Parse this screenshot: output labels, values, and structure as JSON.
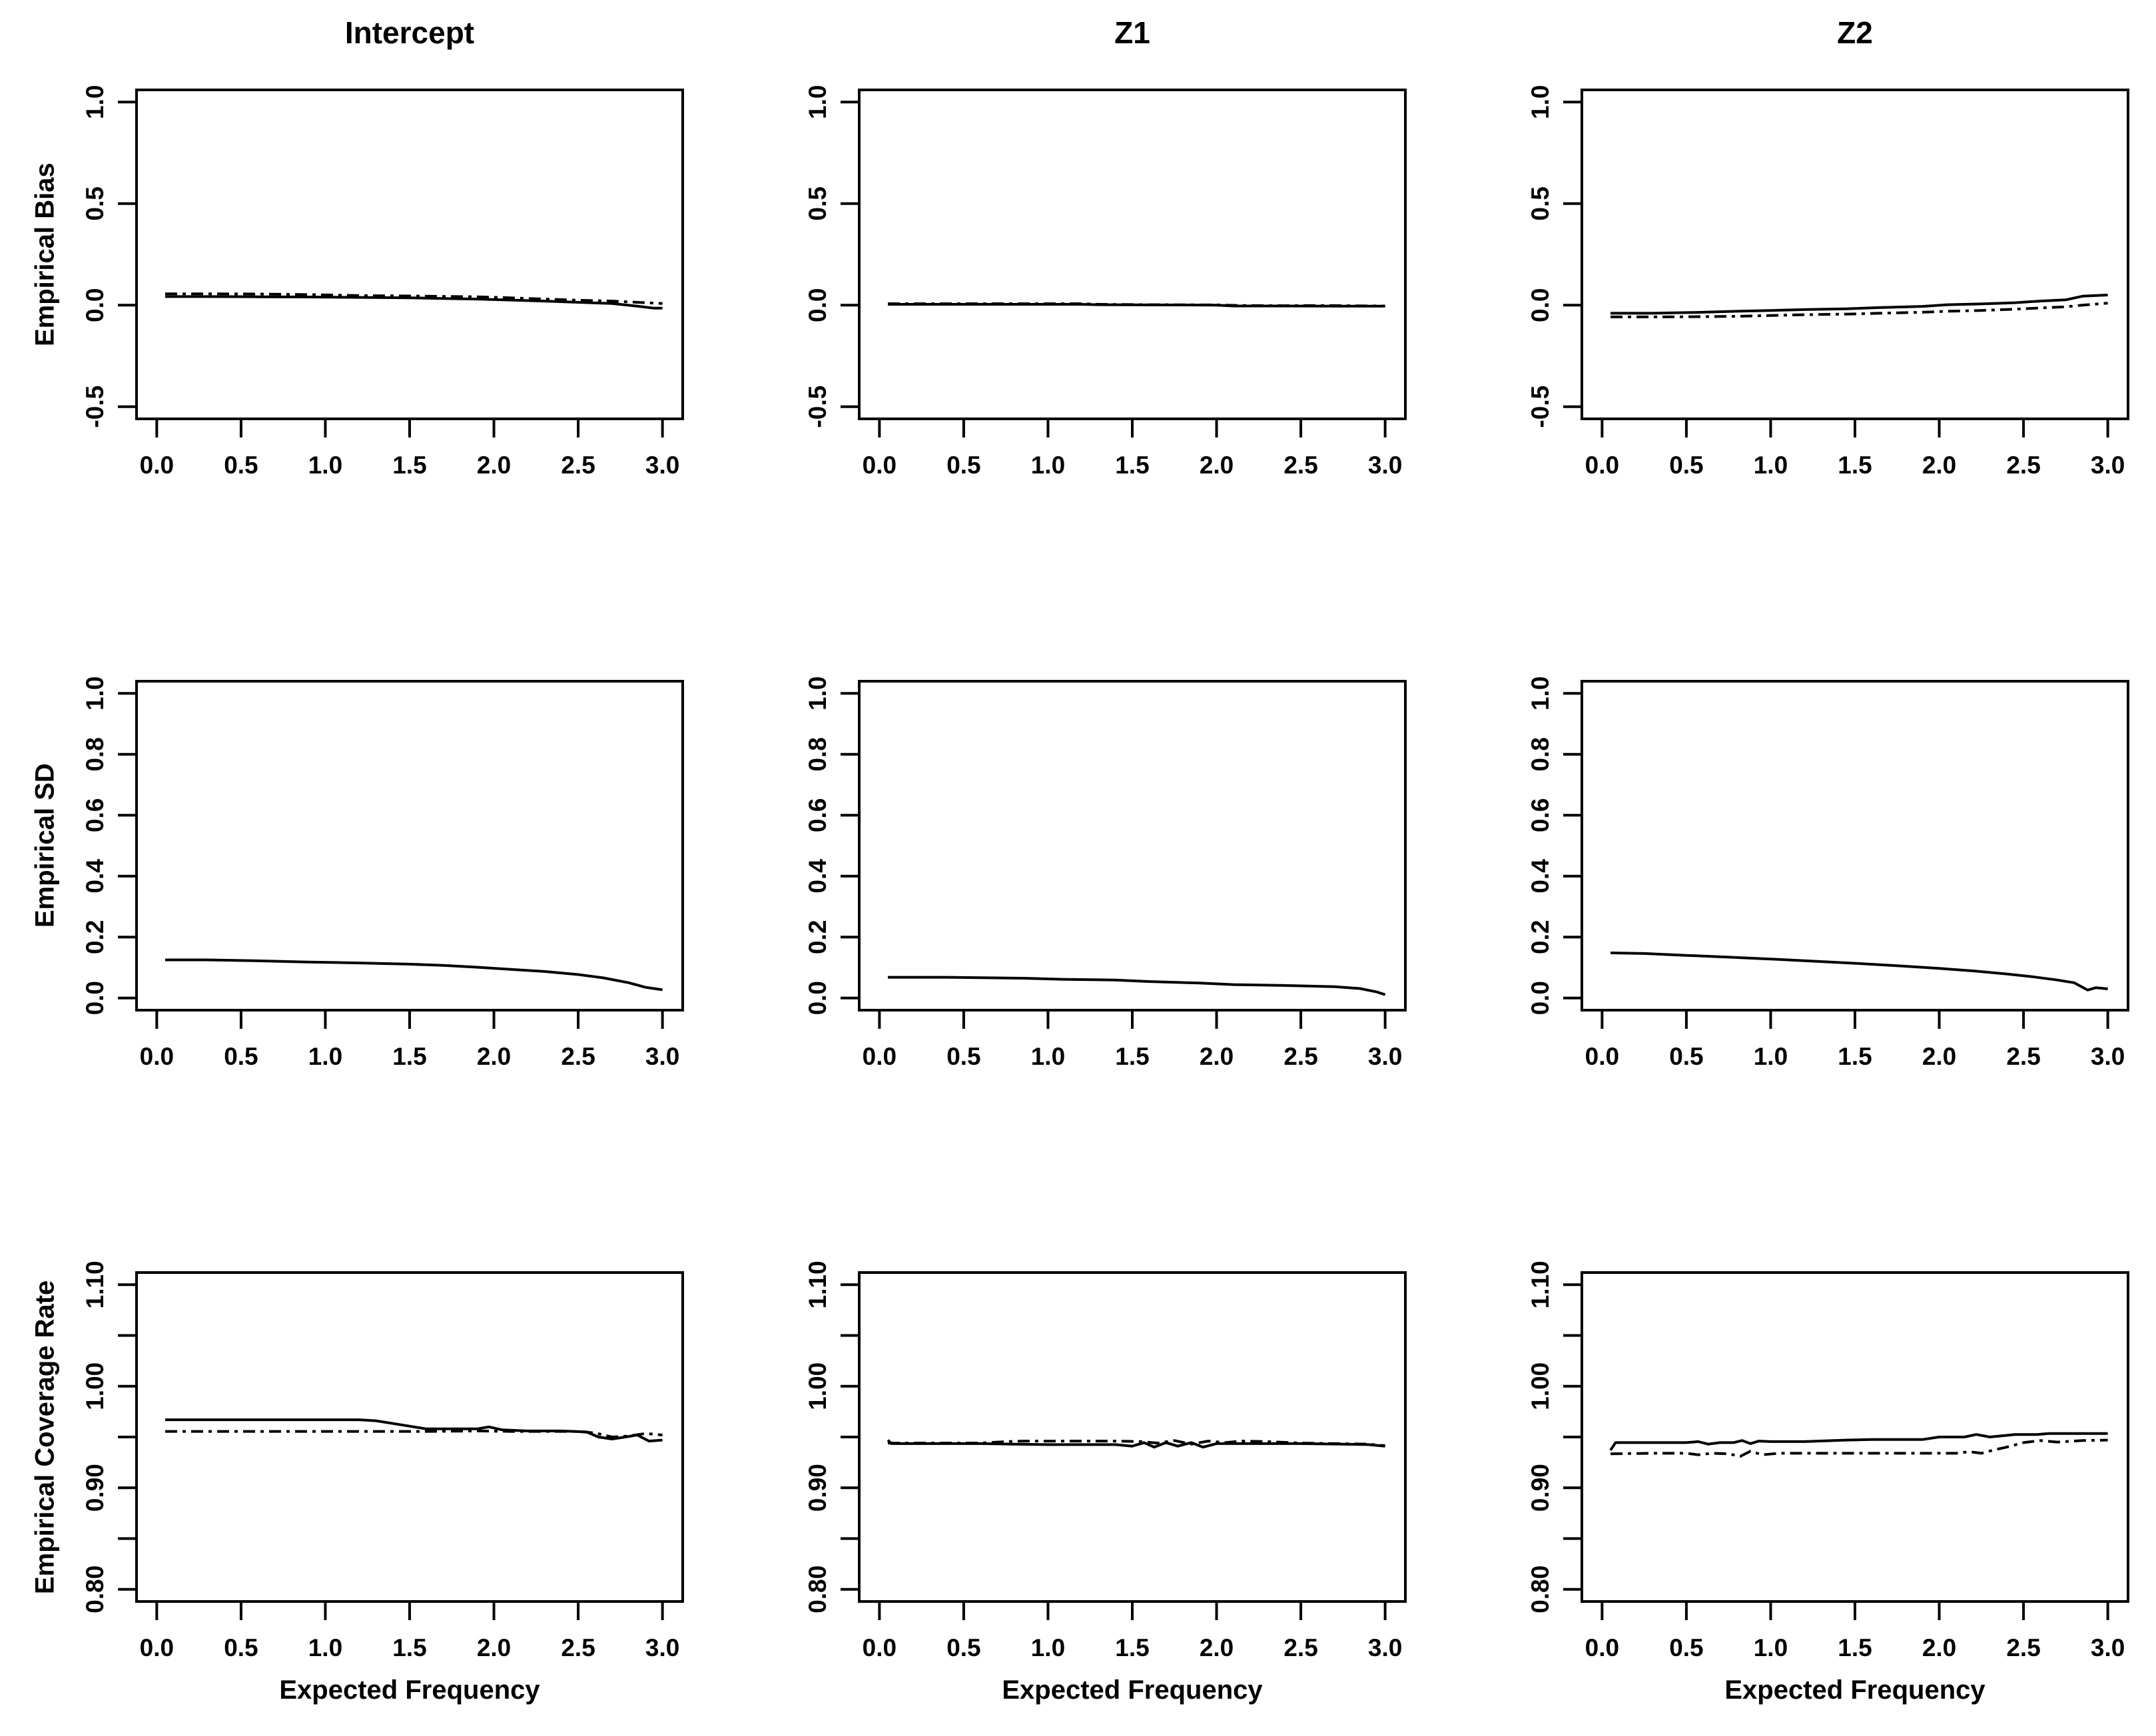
{
  "figure": {
    "background": "#ffffff",
    "line_color": "#000000",
    "column_titles": [
      "Intercept",
      "Z1",
      "Z2"
    ],
    "row_ylabels": [
      "Empirical Bias",
      "Empirical SD",
      "Empirical Coverage Rate"
    ],
    "xlabel": "Expected Frequency",
    "legend": "none",
    "grid": false
  },
  "chart_data": [
    {
      "type": "line",
      "key": "intercept-bias",
      "row": 0,
      "col": 0,
      "title": "Intercept",
      "ylabel": "Empirical Bias",
      "xlabel": "",
      "xlim": [
        -0.12,
        3.12
      ],
      "ylim": [
        -0.56,
        1.06
      ],
      "x_ticks": [
        0,
        0.5,
        1,
        1.5,
        2,
        2.5,
        3
      ],
      "x_tick_labels": [
        "0.0",
        "0.5",
        "1.0",
        "1.5",
        "2.0",
        "2.5",
        "3.0"
      ],
      "y_ticks": [
        -0.5,
        0,
        0.5,
        1
      ],
      "y_tick_labels": [
        "-0.5",
        "0.0",
        "0.5",
        "1.0"
      ],
      "y_minor_ticks": [],
      "series": [
        {
          "name": "solid",
          "style": "solid",
          "x": [
            0.05,
            0.3,
            0.6,
            0.9,
            1.2,
            1.5,
            1.7,
            1.9,
            2.1,
            2.3,
            2.5,
            2.7,
            2.85,
            2.95,
            3.0
          ],
          "y": [
            0.042,
            0.042,
            0.041,
            0.04,
            0.038,
            0.036,
            0.033,
            0.03,
            0.025,
            0.02,
            0.014,
            0.008,
            -0.005,
            -0.015,
            -0.015
          ]
        },
        {
          "name": "dotdash",
          "style": "dotdash",
          "x": [
            0.05,
            0.3,
            0.6,
            0.9,
            1.2,
            1.5,
            1.7,
            1.9,
            2.1,
            2.3,
            2.5,
            2.7,
            2.85,
            2.95,
            3.0
          ],
          "y": [
            0.056,
            0.056,
            0.055,
            0.052,
            0.047,
            0.045,
            0.043,
            0.041,
            0.036,
            0.03,
            0.024,
            0.02,
            0.014,
            0.01,
            0.008
          ]
        }
      ]
    },
    {
      "type": "line",
      "key": "z1-bias",
      "row": 0,
      "col": 1,
      "title": "Z1",
      "ylabel": "",
      "xlabel": "",
      "xlim": [
        -0.12,
        3.12
      ],
      "ylim": [
        -0.56,
        1.06
      ],
      "x_ticks": [
        0,
        0.5,
        1,
        1.5,
        2,
        2.5,
        3
      ],
      "x_tick_labels": [
        "0.0",
        "0.5",
        "1.0",
        "1.5",
        "2.0",
        "2.5",
        "3.0"
      ],
      "y_ticks": [
        -0.5,
        0,
        0.5,
        1
      ],
      "y_tick_labels": [
        "-0.5",
        "0.0",
        "0.5",
        "1.0"
      ],
      "y_minor_ticks": [],
      "series": [
        {
          "name": "solid",
          "style": "solid",
          "x": [
            0.05,
            0.4,
            0.8,
            1.2,
            1.3,
            1.6,
            2.0,
            2.1,
            2.4,
            2.7,
            3.0
          ],
          "y": [
            0.004,
            0.004,
            0.004,
            0.004,
            0.002,
            0.001,
            0.0,
            -0.004,
            -0.004,
            -0.005,
            -0.005
          ]
        },
        {
          "name": "dotdash",
          "style": "dotdash",
          "x": [
            0.05,
            0.4,
            0.8,
            1.2,
            1.3,
            1.6,
            2.0,
            2.15,
            2.4,
            2.6,
            3.0
          ],
          "y": [
            0.007,
            0.007,
            0.007,
            0.007,
            0.004,
            0.002,
            0.001,
            -0.002,
            -0.003,
            -0.002,
            -0.004
          ]
        }
      ]
    },
    {
      "type": "line",
      "key": "z2-bias",
      "row": 0,
      "col": 2,
      "title": "Z2",
      "ylabel": "",
      "xlabel": "",
      "xlim": [
        -0.12,
        3.12
      ],
      "ylim": [
        -0.56,
        1.06
      ],
      "x_ticks": [
        0,
        0.5,
        1,
        1.5,
        2,
        2.5,
        3
      ],
      "x_tick_labels": [
        "0.0",
        "0.5",
        "1.0",
        "1.5",
        "2.0",
        "2.5",
        "3.0"
      ],
      "y_ticks": [
        -0.5,
        0,
        0.5,
        1
      ],
      "y_tick_labels": [
        "-0.5",
        "0.0",
        "0.5",
        "1.0"
      ],
      "y_minor_ticks": [],
      "series": [
        {
          "name": "solid",
          "style": "solid",
          "x": [
            0.05,
            0.3,
            0.55,
            0.8,
            1.0,
            1.2,
            1.45,
            1.65,
            1.9,
            2.05,
            2.25,
            2.45,
            2.6,
            2.75,
            2.85,
            3.0
          ],
          "y": [
            -0.04,
            -0.04,
            -0.036,
            -0.03,
            -0.026,
            -0.022,
            -0.018,
            -0.012,
            -0.006,
            0.002,
            0.006,
            0.012,
            0.02,
            0.026,
            0.044,
            0.05
          ]
        },
        {
          "name": "dotdash",
          "style": "dotdash",
          "x": [
            0.05,
            0.3,
            0.55,
            0.8,
            1.0,
            1.2,
            1.45,
            1.65,
            1.9,
            2.05,
            2.25,
            2.45,
            2.6,
            2.75,
            2.85,
            3.0
          ],
          "y": [
            -0.058,
            -0.058,
            -0.057,
            -0.055,
            -0.051,
            -0.047,
            -0.044,
            -0.04,
            -0.035,
            -0.03,
            -0.026,
            -0.02,
            -0.014,
            -0.008,
            0.0,
            0.01
          ]
        }
      ]
    },
    {
      "type": "line",
      "key": "intercept-sd",
      "row": 1,
      "col": 0,
      "title": "",
      "ylabel": "Empirical SD",
      "xlabel": "",
      "xlim": [
        -0.12,
        3.12
      ],
      "ylim": [
        -0.04,
        1.04
      ],
      "x_ticks": [
        0,
        0.5,
        1,
        1.5,
        2,
        2.5,
        3
      ],
      "x_tick_labels": [
        "0.0",
        "0.5",
        "1.0",
        "1.5",
        "2.0",
        "2.5",
        "3.0"
      ],
      "y_ticks": [
        0,
        0.2,
        0.4,
        0.6,
        0.8,
        1.0
      ],
      "y_tick_labels": [
        "0.0",
        "0.2",
        "0.4",
        "0.6",
        "0.8",
        "1.0"
      ],
      "y_minor_ticks": [],
      "series": [
        {
          "name": "solid",
          "style": "solid",
          "x": [
            0.05,
            0.3,
            0.6,
            0.9,
            1.2,
            1.5,
            1.7,
            1.9,
            2.1,
            2.3,
            2.5,
            2.65,
            2.8,
            2.9,
            3.0
          ],
          "y": [
            0.125,
            0.125,
            0.122,
            0.118,
            0.115,
            0.111,
            0.107,
            0.101,
            0.094,
            0.087,
            0.077,
            0.066,
            0.05,
            0.035,
            0.027
          ]
        }
      ]
    },
    {
      "type": "line",
      "key": "z1-sd",
      "row": 1,
      "col": 1,
      "title": "",
      "ylabel": "",
      "xlabel": "",
      "xlim": [
        -0.12,
        3.12
      ],
      "ylim": [
        -0.04,
        1.04
      ],
      "x_ticks": [
        0,
        0.5,
        1,
        1.5,
        2,
        2.5,
        3
      ],
      "x_tick_labels": [
        "0.0",
        "0.5",
        "1.0",
        "1.5",
        "2.0",
        "2.5",
        "3.0"
      ],
      "y_ticks": [
        0,
        0.2,
        0.4,
        0.6,
        0.8,
        1.0
      ],
      "y_tick_labels": [
        "0.0",
        "0.2",
        "0.4",
        "0.6",
        "0.8",
        "1.0"
      ],
      "y_minor_ticks": [],
      "series": [
        {
          "name": "solid",
          "style": "solid",
          "x": [
            0.05,
            0.4,
            0.85,
            1.1,
            1.4,
            1.6,
            1.9,
            2.1,
            2.4,
            2.7,
            2.85,
            2.95,
            3.0
          ],
          "y": [
            0.068,
            0.068,
            0.065,
            0.061,
            0.059,
            0.054,
            0.049,
            0.044,
            0.041,
            0.037,
            0.031,
            0.02,
            0.011
          ]
        }
      ]
    },
    {
      "type": "line",
      "key": "z2-sd",
      "row": 1,
      "col": 2,
      "title": "",
      "ylabel": "",
      "xlabel": "",
      "xlim": [
        -0.12,
        3.12
      ],
      "ylim": [
        -0.04,
        1.04
      ],
      "x_ticks": [
        0,
        0.5,
        1,
        1.5,
        2,
        2.5,
        3
      ],
      "x_tick_labels": [
        "0.0",
        "0.5",
        "1.0",
        "1.5",
        "2.0",
        "2.5",
        "3.0"
      ],
      "y_ticks": [
        0,
        0.2,
        0.4,
        0.6,
        0.8,
        1.0
      ],
      "y_tick_labels": [
        "0.0",
        "0.2",
        "0.4",
        "0.6",
        "0.8",
        "1.0"
      ],
      "y_minor_ticks": [],
      "series": [
        {
          "name": "solid",
          "style": "solid",
          "x": [
            0.05,
            0.25,
            0.5,
            0.75,
            1.0,
            1.25,
            1.5,
            1.75,
            2.0,
            2.2,
            2.4,
            2.55,
            2.7,
            2.8,
            2.88,
            2.93,
            3.0
          ],
          "y": [
            0.148,
            0.146,
            0.14,
            0.134,
            0.128,
            0.121,
            0.114,
            0.106,
            0.097,
            0.089,
            0.079,
            0.07,
            0.059,
            0.05,
            0.026,
            0.034,
            0.03
          ]
        }
      ]
    },
    {
      "type": "line",
      "key": "intercept-coverage",
      "row": 2,
      "col": 0,
      "title": "",
      "ylabel": "Empirical Coverage Rate",
      "xlabel": "Expected Frequency",
      "xlim": [
        -0.12,
        3.12
      ],
      "ylim": [
        0.788,
        1.112
      ],
      "x_ticks": [
        0,
        0.5,
        1,
        1.5,
        2,
        2.5,
        3
      ],
      "x_tick_labels": [
        "0.0",
        "0.5",
        "1.0",
        "1.5",
        "2.0",
        "2.5",
        "3.0"
      ],
      "y_ticks": [
        0.8,
        0.9,
        1.0,
        1.1
      ],
      "y_tick_labels": [
        "0.80",
        "0.90",
        "1.00",
        "1.10"
      ],
      "y_minor_ticks": [
        0.85,
        0.95,
        1.05
      ],
      "series": [
        {
          "name": "solid",
          "style": "solid",
          "x": [
            0.05,
            0.4,
            0.8,
            1.2,
            1.3,
            1.45,
            1.6,
            1.75,
            1.9,
            1.97,
            2.05,
            2.2,
            2.4,
            2.55,
            2.62,
            2.7,
            2.78,
            2.85,
            2.92,
            3.0
          ],
          "y": [
            0.967,
            0.967,
            0.967,
            0.967,
            0.966,
            0.962,
            0.958,
            0.958,
            0.958,
            0.96,
            0.957,
            0.956,
            0.956,
            0.955,
            0.95,
            0.948,
            0.95,
            0.952,
            0.946,
            0.947
          ]
        },
        {
          "name": "dotdash",
          "style": "dotdash",
          "x": [
            0.05,
            0.4,
            0.8,
            1.2,
            1.6,
            1.9,
            2.1,
            2.3,
            2.5,
            2.6,
            2.7,
            2.8,
            2.9,
            3.0
          ],
          "y": [
            0.9555,
            0.9555,
            0.9555,
            0.9555,
            0.9555,
            0.956,
            0.9555,
            0.9555,
            0.9555,
            0.954,
            0.95,
            0.951,
            0.9535,
            0.952
          ]
        }
      ]
    },
    {
      "type": "line",
      "key": "z1-coverage",
      "row": 2,
      "col": 1,
      "title": "",
      "ylabel": "",
      "xlabel": "Expected Frequency",
      "xlim": [
        -0.12,
        3.12
      ],
      "ylim": [
        0.788,
        1.112
      ],
      "x_ticks": [
        0,
        0.5,
        1,
        1.5,
        2,
        2.5,
        3
      ],
      "x_tick_labels": [
        "0.0",
        "0.5",
        "1.0",
        "1.5",
        "2.0",
        "2.5",
        "3.0"
      ],
      "y_ticks": [
        0.8,
        0.9,
        1.0,
        1.1
      ],
      "y_tick_labels": [
        "0.80",
        "0.90",
        "1.00",
        "1.10"
      ],
      "y_minor_ticks": [
        0.85,
        0.95,
        1.05
      ],
      "series": [
        {
          "name": "solid",
          "style": "solid",
          "x": [
            0.05,
            0.07,
            0.35,
            0.6,
            0.8,
            1.0,
            1.2,
            1.4,
            1.5,
            1.57,
            1.63,
            1.7,
            1.77,
            1.85,
            1.92,
            2.0,
            2.1,
            2.25,
            2.5,
            2.75,
            2.9,
            3.0
          ],
          "y": [
            0.947,
            0.9435,
            0.9435,
            0.9435,
            0.943,
            0.9425,
            0.9425,
            0.9425,
            0.941,
            0.9445,
            0.94,
            0.9445,
            0.941,
            0.9445,
            0.94,
            0.9435,
            0.9435,
            0.9435,
            0.9435,
            0.943,
            0.9425,
            0.941
          ]
        },
        {
          "name": "dotdash",
          "style": "dotdash",
          "x": [
            0.05,
            0.35,
            0.6,
            0.75,
            0.85,
            1.0,
            1.2,
            1.4,
            1.55,
            1.65,
            1.75,
            1.85,
            1.95,
            2.05,
            2.15,
            2.3,
            2.5,
            2.7,
            2.9,
            3.0
          ],
          "y": [
            0.944,
            0.944,
            0.944,
            0.9455,
            0.946,
            0.946,
            0.946,
            0.946,
            0.9455,
            0.944,
            0.9465,
            0.943,
            0.946,
            0.9445,
            0.946,
            0.9455,
            0.944,
            0.9435,
            0.943,
            0.9415
          ]
        }
      ]
    },
    {
      "type": "line",
      "key": "z2-coverage",
      "row": 2,
      "col": 2,
      "title": "",
      "ylabel": "",
      "xlabel": "Expected Frequency",
      "xlim": [
        -0.12,
        3.12
      ],
      "ylim": [
        0.788,
        1.112
      ],
      "x_ticks": [
        0,
        0.5,
        1,
        1.5,
        2,
        2.5,
        3
      ],
      "x_tick_labels": [
        "0.0",
        "0.5",
        "1.0",
        "1.5",
        "2.0",
        "2.5",
        "3.0"
      ],
      "y_ticks": [
        0.8,
        0.9,
        1.0,
        1.1
      ],
      "y_tick_labels": [
        "0.80",
        "0.90",
        "1.00",
        "1.10"
      ],
      "y_minor_ticks": [
        0.85,
        0.95,
        1.05
      ],
      "series": [
        {
          "name": "solid",
          "style": "solid",
          "x": [
            0.05,
            0.08,
            0.3,
            0.5,
            0.57,
            0.63,
            0.7,
            0.78,
            0.83,
            0.88,
            0.93,
            1.0,
            1.2,
            1.45,
            1.6,
            1.9,
            2.0,
            2.15,
            2.22,
            2.3,
            2.45,
            2.58,
            2.65,
            2.8,
            3.0
          ],
          "y": [
            0.937,
            0.9445,
            0.9445,
            0.9445,
            0.9455,
            0.943,
            0.9445,
            0.9445,
            0.9465,
            0.9435,
            0.946,
            0.9455,
            0.9455,
            0.947,
            0.9475,
            0.9475,
            0.95,
            0.95,
            0.9525,
            0.95,
            0.9525,
            0.9525,
            0.9535,
            0.9535,
            0.9535
          ]
        },
        {
          "name": "dotdash",
          "style": "dotdash",
          "x": [
            0.05,
            0.3,
            0.5,
            0.57,
            0.65,
            0.75,
            0.82,
            0.88,
            0.95,
            1.05,
            1.3,
            1.6,
            1.9,
            2.1,
            2.18,
            2.25,
            2.33,
            2.4,
            2.5,
            2.6,
            2.7,
            2.85,
            3.0
          ],
          "y": [
            0.9335,
            0.934,
            0.934,
            0.9325,
            0.934,
            0.9335,
            0.931,
            0.936,
            0.9325,
            0.934,
            0.934,
            0.934,
            0.934,
            0.934,
            0.9355,
            0.934,
            0.9375,
            0.94,
            0.9445,
            0.9465,
            0.945,
            0.9465,
            0.947
          ]
        }
      ]
    }
  ]
}
